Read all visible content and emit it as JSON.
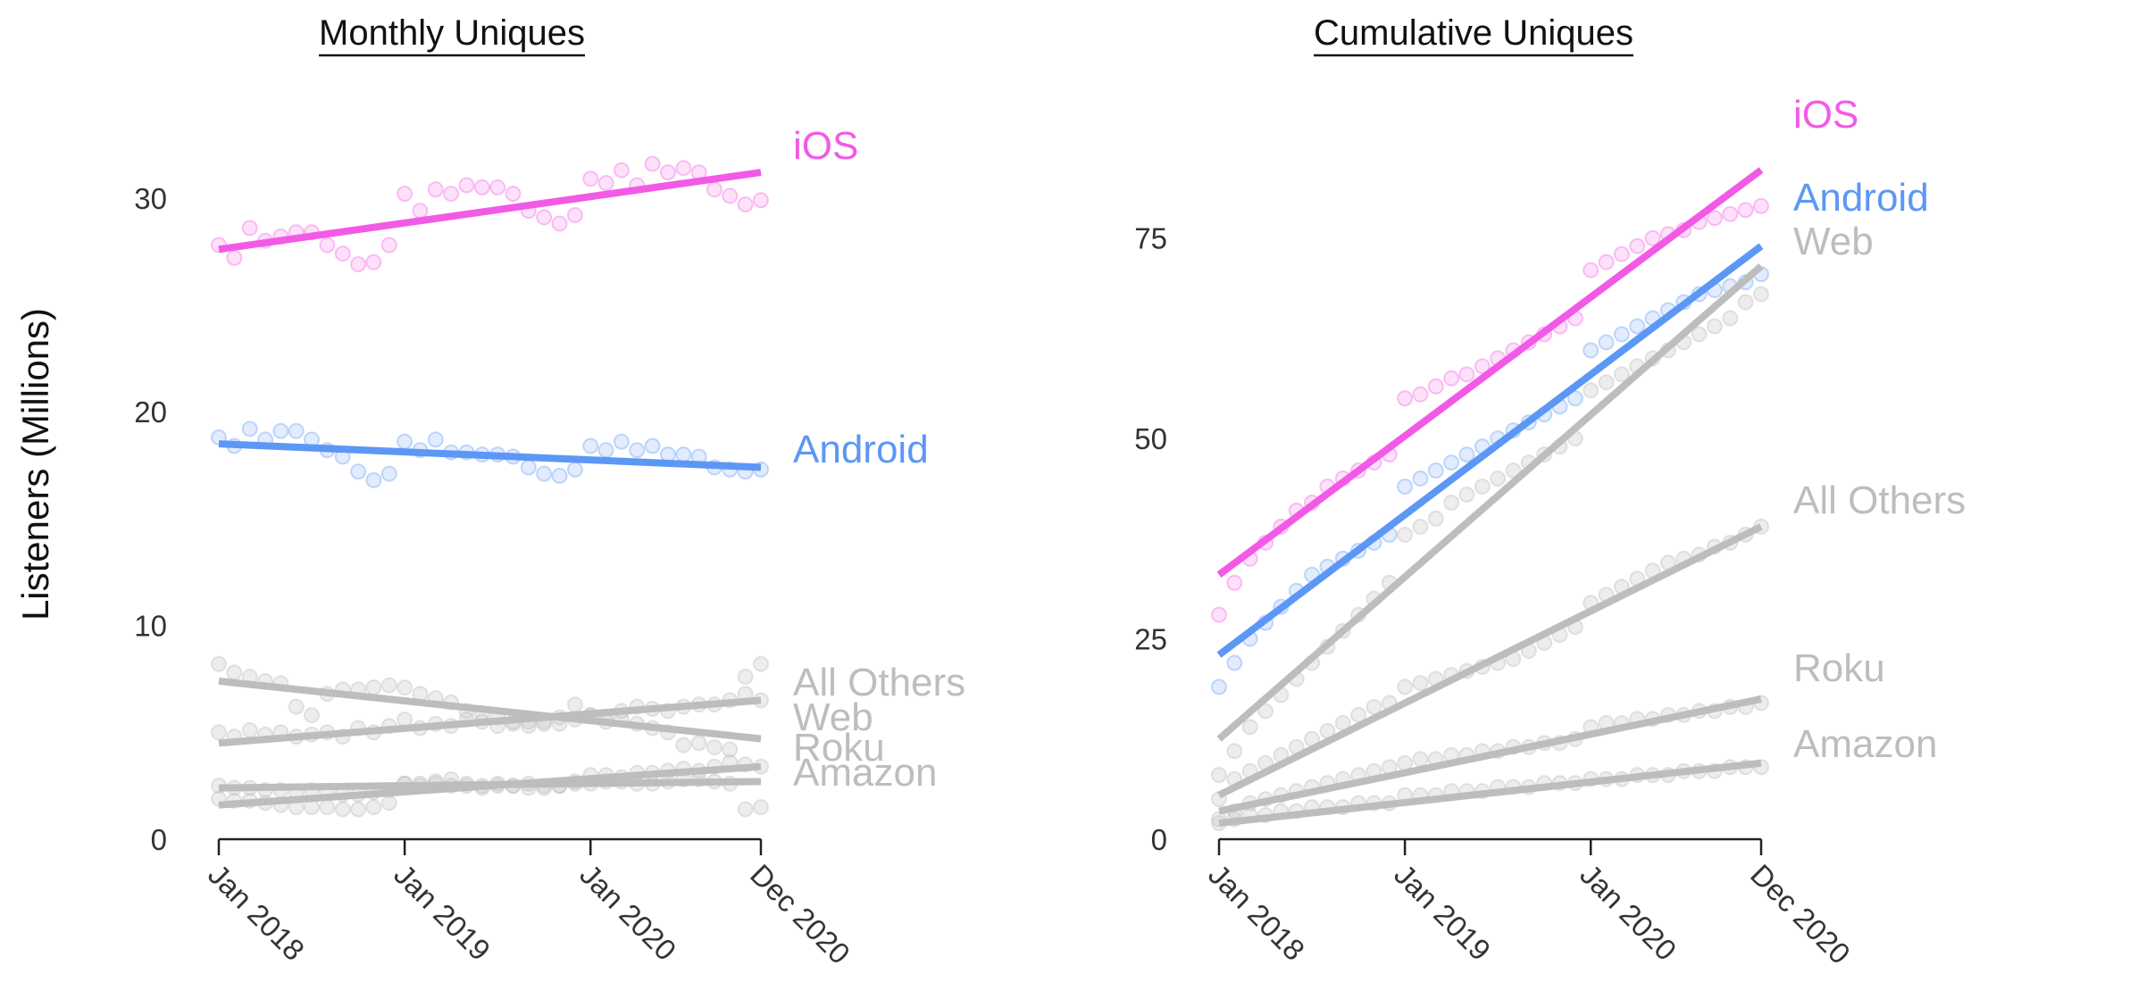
{
  "y_axis_title": "Listeners (Millions)",
  "chart_data": [
    {
      "type": "scatter",
      "title": "Monthly Uniques",
      "xlabel": "",
      "ylabel": "Listeners (Millions)",
      "x_ticks": [
        "Jan 2018",
        "Jan 2019",
        "Jan 2020",
        "Dec 2020"
      ],
      "x_tick_months": [
        0,
        12,
        24,
        35
      ],
      "xlim": [
        0,
        35
      ],
      "y_ticks": [
        "0",
        "10",
        "20",
        "30"
      ],
      "y_tick_values": [
        0,
        10,
        20,
        30
      ],
      "ylim": [
        0,
        33
      ],
      "x": [
        "2018-01",
        "2018-02",
        "2018-03",
        "2018-04",
        "2018-05",
        "2018-06",
        "2018-07",
        "2018-08",
        "2018-09",
        "2018-10",
        "2018-11",
        "2018-12",
        "2019-01",
        "2019-02",
        "2019-03",
        "2019-04",
        "2019-05",
        "2019-06",
        "2019-07",
        "2019-08",
        "2019-09",
        "2019-10",
        "2019-11",
        "2019-12",
        "2020-01",
        "2020-02",
        "2020-03",
        "2020-04",
        "2020-05",
        "2020-06",
        "2020-07",
        "2020-08",
        "2020-09",
        "2020-10",
        "2020-11",
        "2020-12"
      ],
      "series": [
        {
          "name": "iOS",
          "color": "#f25ae6",
          "highlight": true,
          "trend": [
            27.6,
            31.2
          ],
          "values": [
            27.8,
            27.2,
            28.6,
            28.0,
            28.2,
            28.4,
            28.4,
            27.8,
            27.4,
            26.9,
            27.0,
            27.8,
            30.2,
            29.4,
            30.4,
            30.2,
            30.6,
            30.5,
            30.5,
            30.2,
            29.4,
            29.1,
            28.8,
            29.2,
            30.9,
            30.7,
            31.3,
            30.6,
            31.6,
            31.2,
            31.4,
            31.2,
            30.4,
            30.1,
            29.7,
            29.9
          ]
        },
        {
          "name": "Android",
          "color": "#5c97f5",
          "highlight": true,
          "trend": [
            18.5,
            17.4
          ],
          "values": [
            18.8,
            18.4,
            19.2,
            18.7,
            19.1,
            19.1,
            18.7,
            18.2,
            17.9,
            17.2,
            16.8,
            17.1,
            18.6,
            18.2,
            18.7,
            18.1,
            18.1,
            18.0,
            18.0,
            17.9,
            17.4,
            17.1,
            17.0,
            17.3,
            18.4,
            18.2,
            18.6,
            18.2,
            18.4,
            18.0,
            18.0,
            17.9,
            17.4,
            17.3,
            17.2,
            17.3
          ]
        },
        {
          "name": "All Others",
          "color": "#bdbdbd",
          "highlight": false,
          "trend": [
            4.5,
            6.5
          ],
          "values": [
            5.0,
            4.8,
            5.1,
            4.9,
            5.0,
            4.8,
            4.9,
            5.0,
            4.8,
            5.2,
            5.0,
            5.3,
            5.6,
            5.2,
            5.4,
            5.3,
            5.6,
            5.5,
            5.3,
            5.4,
            5.5,
            5.5,
            5.7,
            5.6,
            5.8,
            5.7,
            6.0,
            6.2,
            6.1,
            6.0,
            6.2,
            6.3,
            6.3,
            6.5,
            6.8,
            6.5
          ]
        },
        {
          "name": "Web",
          "color": "#bdbdbd",
          "highlight": false,
          "trend": [
            7.4,
            4.7
          ],
          "values": [
            8.2,
            7.8,
            7.6,
            7.4,
            7.3,
            6.2,
            5.8,
            6.8,
            7.0,
            7.0,
            7.1,
            7.2,
            7.1,
            6.8,
            6.6,
            6.4,
            6.0,
            5.9,
            5.7,
            5.5,
            5.3,
            5.4,
            5.4,
            6.3,
            5.8,
            5.5,
            5.6,
            5.4,
            5.2,
            5.0,
            4.4,
            4.5,
            4.3,
            4.2,
            7.6,
            8.2
          ]
        },
        {
          "name": "Roku",
          "color": "#bdbdbd",
          "highlight": false,
          "trend": [
            1.6,
            3.4
          ],
          "values": [
            1.9,
            1.8,
            1.8,
            1.7,
            1.6,
            1.5,
            1.5,
            1.5,
            1.4,
            1.4,
            1.5,
            1.7,
            2.6,
            2.6,
            2.7,
            2.8,
            2.6,
            2.5,
            2.6,
            2.5,
            2.6,
            2.4,
            2.5,
            2.7,
            3.0,
            3.0,
            2.9,
            3.1,
            3.1,
            3.2,
            3.3,
            3.2,
            3.4,
            3.6,
            3.5,
            3.4
          ]
        },
        {
          "name": "Amazon",
          "color": "#bdbdbd",
          "highlight": false,
          "trend": [
            2.4,
            2.7
          ],
          "values": [
            2.5,
            2.4,
            2.4,
            2.3,
            2.3,
            2.2,
            2.3,
            2.2,
            2.1,
            2.1,
            2.2,
            2.3,
            2.6,
            2.5,
            2.6,
            2.5,
            2.5,
            2.4,
            2.5,
            2.5,
            2.4,
            2.5,
            2.5,
            2.6,
            2.6,
            2.7,
            2.7,
            2.6,
            2.6,
            2.7,
            2.8,
            2.8,
            2.7,
            2.6,
            1.4,
            1.5
          ]
        }
      ],
      "label_order": [
        "iOS",
        "Android",
        "All Others",
        "Web",
        "Roku",
        "Amazon"
      ],
      "grid": false,
      "legend": "direct labels at right end of lines"
    },
    {
      "type": "scatter",
      "title": "Cumulative Uniques",
      "xlabel": "",
      "ylabel": "Listeners (Millions)",
      "x_ticks": [
        "Jan 2018",
        "Jan 2019",
        "Jan 2020",
        "Dec 2020"
      ],
      "x_tick_months": [
        0,
        12,
        24,
        35
      ],
      "xlim": [
        0,
        35
      ],
      "y_ticks": [
        "0",
        "25",
        "50",
        "75"
      ],
      "y_tick_values": [
        0,
        25,
        50,
        75
      ],
      "ylim": [
        0,
        88
      ],
      "x": [
        "2018-01",
        "2018-02",
        "2018-03",
        "2018-04",
        "2018-05",
        "2018-06",
        "2018-07",
        "2018-08",
        "2018-09",
        "2018-10",
        "2018-11",
        "2018-12",
        "2019-01",
        "2019-02",
        "2019-03",
        "2019-04",
        "2019-05",
        "2019-06",
        "2019-07",
        "2019-08",
        "2019-09",
        "2019-10",
        "2019-11",
        "2019-12",
        "2020-01",
        "2020-02",
        "2020-03",
        "2020-04",
        "2020-05",
        "2020-06",
        "2020-07",
        "2020-08",
        "2020-09",
        "2020-10",
        "2020-11",
        "2020-12"
      ],
      "series": [
        {
          "name": "iOS",
          "color": "#f25ae6",
          "highlight": true,
          "trend": [
            33,
            83.5
          ],
          "values": [
            28,
            32,
            35,
            37,
            39,
            41,
            42,
            44,
            45,
            46,
            47,
            48,
            55,
            55.5,
            56.5,
            57.5,
            58,
            59,
            60,
            61,
            62,
            63,
            64,
            65,
            71,
            72,
            73,
            74,
            75,
            75.5,
            76,
            77,
            77.5,
            78,
            78.5,
            79
          ]
        },
        {
          "name": "Android",
          "color": "#5c97f5",
          "highlight": true,
          "trend": [
            23,
            74
          ],
          "values": [
            19,
            22,
            25,
            27,
            29,
            31,
            33,
            34,
            35,
            36,
            37,
            38,
            44,
            45,
            46,
            47,
            48,
            49,
            50,
            51,
            52,
            53,
            54,
            55,
            61,
            62,
            63,
            64,
            65,
            66,
            67,
            68,
            68.5,
            69,
            69.5,
            70.5
          ]
        },
        {
          "name": "Web",
          "color": "#bdbdbd",
          "highlight": false,
          "trend": [
            12.5,
            71.5
          ],
          "values": [
            8,
            11,
            14,
            16,
            18,
            20,
            22,
            24,
            26,
            28,
            30,
            32,
            38,
            39,
            40,
            42,
            43,
            44,
            45,
            46,
            47,
            48,
            49,
            50,
            56,
            57,
            58,
            59,
            60,
            61,
            62,
            63,
            64,
            65,
            67,
            68
          ]
        },
        {
          "name": "All Others",
          "color": "#bdbdbd",
          "highlight": false,
          "trend": [
            5.5,
            39
          ],
          "values": [
            5,
            7.5,
            8.5,
            9.5,
            10.5,
            11.5,
            12.5,
            13.5,
            14.5,
            15.5,
            16.5,
            17,
            19,
            19.5,
            20,
            20.5,
            21,
            21.5,
            22,
            22.5,
            23.5,
            24.5,
            25.5,
            26.5,
            29.5,
            30.5,
            31.5,
            32.5,
            33.5,
            34.5,
            35,
            35.5,
            36.5,
            37,
            38,
            39
          ]
        },
        {
          "name": "Roku",
          "color": "#bdbdbd",
          "highlight": false,
          "trend": [
            3.5,
            17.5
          ],
          "values": [
            2.5,
            3.5,
            4.5,
            5,
            5.5,
            6,
            6.5,
            7,
            7.5,
            8,
            8.5,
            9,
            9.5,
            10,
            10,
            10.5,
            10.5,
            11,
            11,
            11.5,
            11.5,
            12,
            12,
            12.5,
            14,
            14.5,
            14.5,
            15,
            15,
            15.5,
            15.5,
            16,
            16,
            16.5,
            16.5,
            17
          ]
        },
        {
          "name": "Amazon",
          "color": "#bdbdbd",
          "highlight": false,
          "trend": [
            2,
            9.5
          ],
          "values": [
            2,
            2.5,
            3,
            3,
            3.5,
            3.5,
            4,
            4,
            4,
            4.5,
            4.5,
            4.5,
            5.5,
            5.5,
            5.5,
            6,
            6,
            6,
            6.5,
            6.5,
            6.5,
            7,
            7,
            7,
            7.5,
            7.5,
            7.5,
            8,
            8,
            8,
            8.5,
            8.5,
            8.5,
            9,
            9,
            9
          ]
        }
      ],
      "label_order": [
        "iOS",
        "Android",
        "Web",
        "All Others",
        "Roku",
        "Amazon"
      ],
      "grid": false,
      "legend": "direct labels at right end of lines"
    }
  ]
}
